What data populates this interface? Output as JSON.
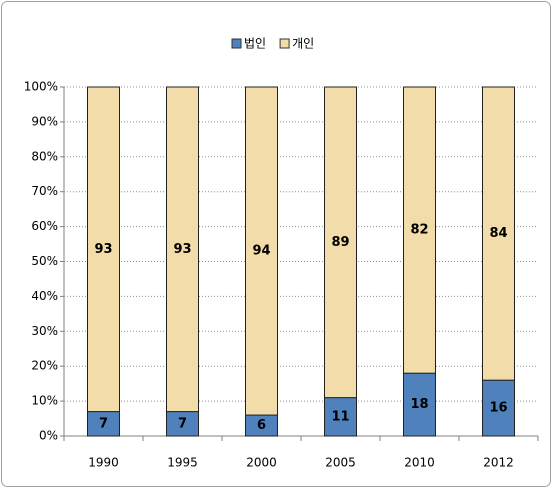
{
  "chart_data": {
    "type": "stacked_bar",
    "categories": [
      "1990",
      "1995",
      "2000",
      "2005",
      "2010",
      "2012"
    ],
    "series": [
      {
        "name": "법인",
        "color": "#4f81bd",
        "values": [
          7,
          7,
          6,
          11,
          18,
          16
        ]
      },
      {
        "name": "개인",
        "color": "#f2dca9",
        "values": [
          93,
          93,
          94,
          89,
          82,
          84
        ]
      }
    ],
    "ylim": [
      0,
      100
    ],
    "yticks": [
      {
        "value": 0,
        "label": "0%"
      },
      {
        "value": 10,
        "label": "10%"
      },
      {
        "value": 20,
        "label": "20%"
      },
      {
        "value": 30,
        "label": "30%"
      },
      {
        "value": 40,
        "label": "40%"
      },
      {
        "value": 50,
        "label": "50%"
      },
      {
        "value": 60,
        "label": "60%"
      },
      {
        "value": 70,
        "label": "70%"
      },
      {
        "value": 80,
        "label": "80%"
      },
      {
        "value": 90,
        "label": "90%"
      },
      {
        "value": 100,
        "label": "100%"
      }
    ],
    "grid": true,
    "legend": "top"
  }
}
